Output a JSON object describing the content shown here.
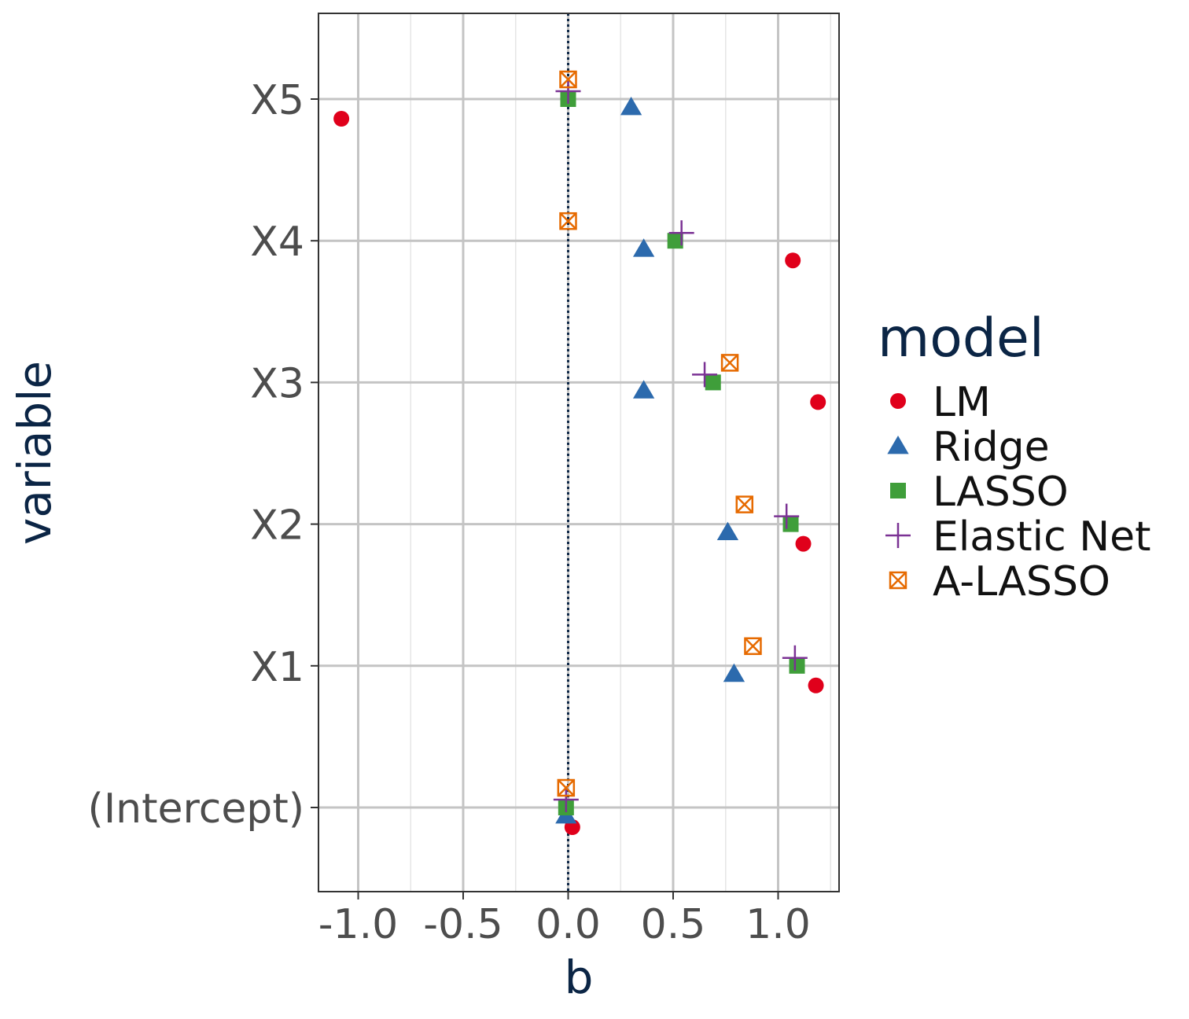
{
  "chart_data": {
    "type": "scatter",
    "xlabel": "b",
    "ylabel": "variable",
    "xlim": [
      -1.19,
      1.29
    ],
    "x_ticks": [
      "-1.0",
      "-0.5",
      "0.0",
      "0.5",
      "1.0"
    ],
    "x_tick_values": [
      -1.0,
      -0.5,
      0.0,
      0.5,
      1.0
    ],
    "categories": [
      "(Intercept)",
      "X1",
      "X2",
      "X3",
      "X4",
      "X5"
    ],
    "reference_line": 0.0,
    "grid": true,
    "legend": {
      "title": "model",
      "position": "right"
    },
    "series": [
      {
        "name": "LM",
        "color": "#e0001b",
        "shape": "circle",
        "values": [
          0.02,
          1.18,
          1.12,
          1.19,
          1.07,
          -1.08
        ]
      },
      {
        "name": "Ridge",
        "color": "#2c6aad",
        "shape": "triangle",
        "values": [
          -0.01,
          0.79,
          0.76,
          0.36,
          0.36,
          0.3
        ]
      },
      {
        "name": "LASSO",
        "color": "#3f9e3a",
        "shape": "square",
        "values": [
          -0.01,
          1.09,
          1.06,
          0.69,
          0.51,
          0.0
        ]
      },
      {
        "name": "Elastic Net",
        "color": "#7b3294",
        "shape": "plus",
        "values": [
          -0.01,
          1.08,
          1.04,
          0.65,
          0.54,
          0.0
        ]
      },
      {
        "name": "A-LASSO",
        "color": "#e66a00",
        "shape": "boxx",
        "values": [
          -0.01,
          0.88,
          0.84,
          0.77,
          0.0,
          0.0
        ]
      }
    ]
  }
}
